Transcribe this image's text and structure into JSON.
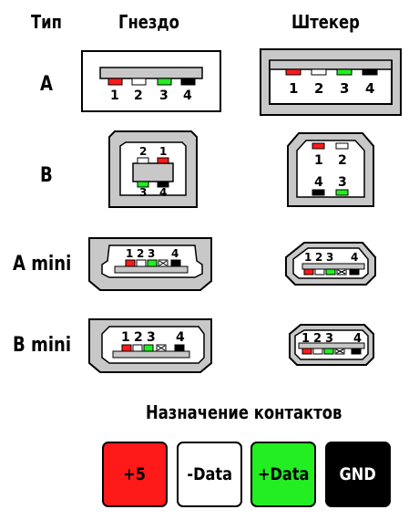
{
  "headers": {
    "type": "Тип",
    "socket": "Гнездо",
    "plug": "Штекер"
  },
  "rows": [
    {
      "label": "A",
      "socket_pins": [
        "1",
        "2",
        "3",
        "4"
      ],
      "plug_pins": [
        "1",
        "2",
        "3",
        "4"
      ]
    },
    {
      "label": "B",
      "socket_pins": [
        "2",
        "1",
        "3",
        "4"
      ],
      "plug_pins": [
        "1",
        "2",
        "4",
        "3"
      ]
    },
    {
      "label": "A mini",
      "socket_pins": [
        "1",
        "2",
        "3",
        "4"
      ],
      "plug_pins": [
        "1",
        "2",
        "3",
        "4"
      ]
    },
    {
      "label": "B mini",
      "socket_pins": [
        "1",
        "2",
        "3",
        "4"
      ],
      "plug_pins": [
        "1",
        "2",
        "3",
        "4"
      ]
    }
  ],
  "legend": {
    "title": "Назначение контактов",
    "items": [
      {
        "label": "+5",
        "color": "#ff1a1a",
        "text_color": "#000000"
      },
      {
        "label": "-Data",
        "color": "#ffffff",
        "text_color": "#000000"
      },
      {
        "label": "+Data",
        "color": "#22ee22",
        "text_color": "#000000"
      },
      {
        "label": "GND",
        "color": "#000000",
        "text_color": "#ffffff"
      }
    ]
  },
  "pin_colors": {
    "p1": "#ff1a1a",
    "p2": "#ffffff",
    "p3": "#22ee22",
    "p4": "#000000",
    "body": "#c8c8c8"
  }
}
